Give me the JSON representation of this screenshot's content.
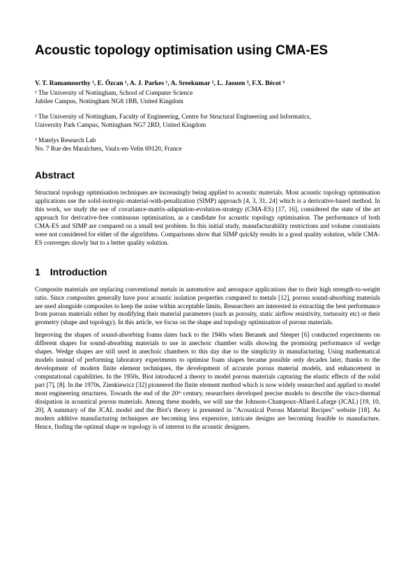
{
  "title": "Acoustic topology optimisation using CMA-ES",
  "authors": "V. T. Ramamoorthy ¹, E. Özcan ¹, A. J. Parkes ¹, A. Sreekumar ², L. Jaouen ³, F.X. Bécot ³",
  "affiliations": {
    "a1": "¹ The University of Nottingham, School of Computer Science\nJubilee Campus, Nottingham NG8 1BB, United Kingdom",
    "a2": "² The University of Nottingham, Faculty of Engineering, Centre for Structural Engineering and Informatics,\nUniversity Park Campus, Nottingham NG7 2RD, United Kingdom",
    "a3": "³ Matelys Research Lab\nNo. 7 Rue des Maraîchers, Vaulx-en-Velin 69120, France"
  },
  "abstract": {
    "heading": "Abstract",
    "body": "Structural topology optimisation techniques are increasingly being applied to acoustic materials. Most acoustic topology optimisation applications use the solid-isotropic-material-with-penalization (SIMP) approach [4, 3, 31, 24] which is a derivative-based method. In this work, we study the use of covariance-matrix-adaptation-evolution-strategy (CMA-ES) [17, 16], considered the state of the art approach for derivative-free continuous optimisation, as a candidate for acoustic topology optimisation. The performance of both CMA-ES and SIMP are compared on a small test problem. In this initial study, manufacturability restrictions and volume constraints were not considered for either of the algorithms. Comparisons show that SIMP quickly results in a good quality solution, while CMA-ES converges slowly but to a better quality solution."
  },
  "section1": {
    "heading": "1 Introduction",
    "p1": "Composite materials are replacing conventional metals in automotive and aerospace applications due to their high strength-to-weight ratio. Since composites generally have poor acoustic isolation properties compared to metals [12], porous sound-absorbing materials are used alongside composites to keep the noise within acceptable limits. Researchers are interested in extracting the best performance from porous materials either by modifying their material parameters (such as porosity, static airflow resistivity, tortuosity etc) or their geometry (shape and topology). In this article, we focus on the shape and topology optimisation of porous materials.",
    "p2": "Improving the shapes of sound-absorbing foams dates back to the 1940s when Beranek and Sleeper [6] conducted experiments on different shapes for sound-absorbing materials to use in anechoic chamber walls showing the promising performance of wedge shapes. Wedge shapes are still used in anechoic chambers to this day due to the simplicity in manufacturing. Using mathematical models instead of performing laboratory experiments to optimise foam shapes became possible only decades later, thanks to the development of modern finite element techniques, the development of accurate porous material models, and enhancement in computational capabilities. In the 1950s, Biot introduced a theory to model porous materials capturing the elastic effects of the solid part [7], [8]. In the 1970s, Zienkiewicz [32] pioneered the finite element method which is now widely researched and applied to model most engineering structures. Towards the end of the 20ᵗʰ century, researchers developed precise models to describe the visco-thermal dissipation in acoustical porous materials. Among these models, we will use the Johnson-Champoux-Allard-Lafarge (JCAL) [19, 10, 20]. A summary of the JCAL model and the Biot's theory is presented in \"Acoustical Porous Material Recipes\" website [18]. As modern additive manufacturing techniques are becoming less expensive, intricate designs are becoming feasible to manufacture. Hence, finding the optimal shape or topology is of interest to the acoustic designers."
  }
}
